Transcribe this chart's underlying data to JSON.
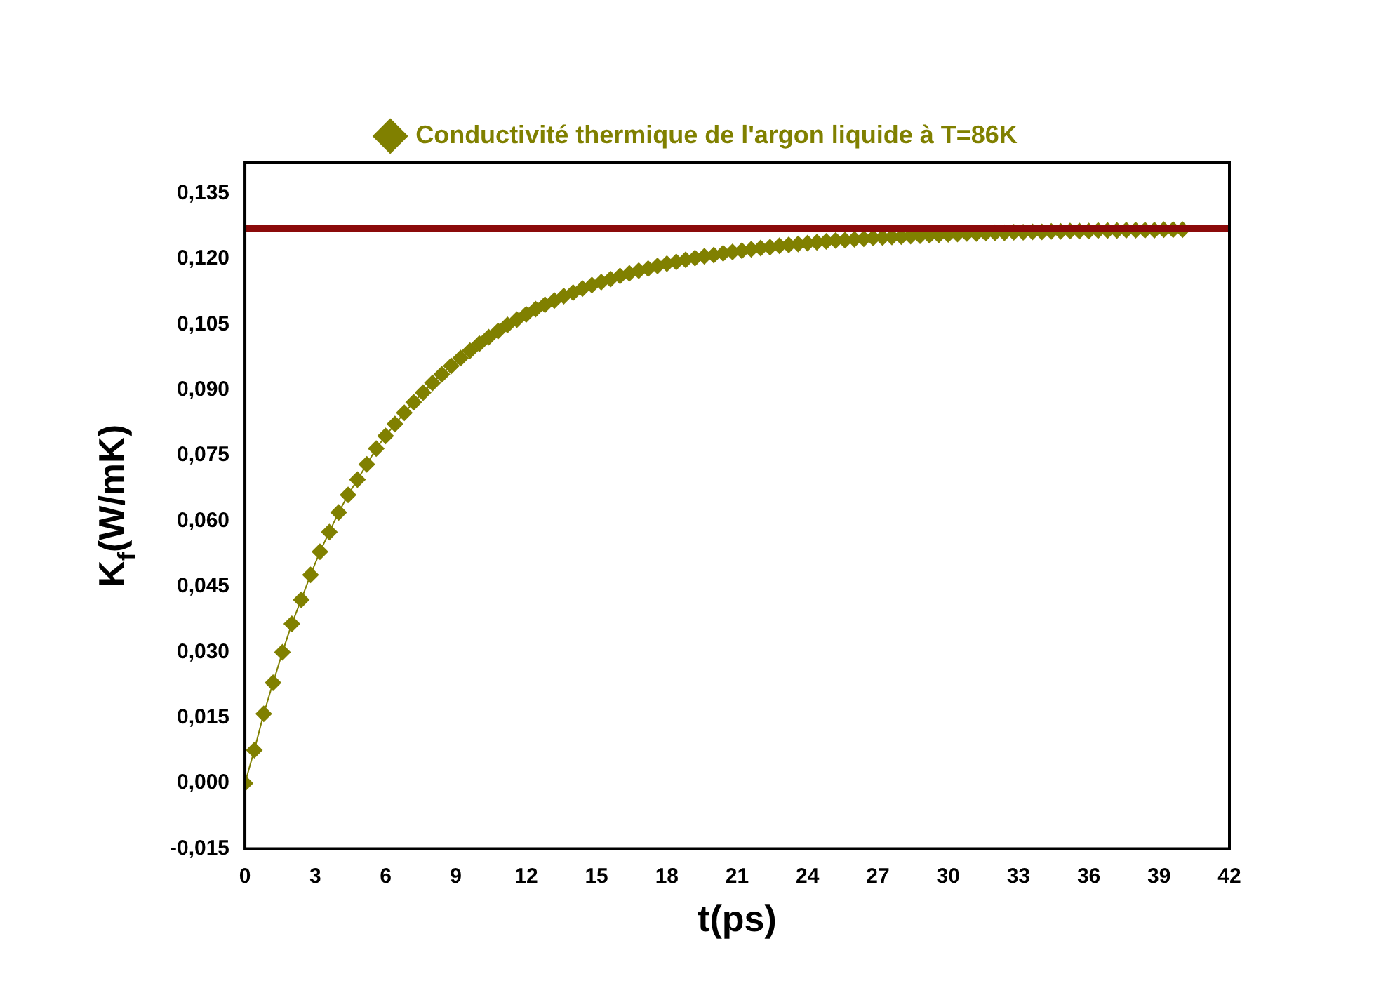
{
  "chart_data": {
    "type": "line",
    "xlabel": "t(ps)",
    "ylabel": "K$_{f}$(W/mK)",
    "xlim": [
      0,
      42
    ],
    "xticks": [
      0,
      3,
      6,
      9,
      12,
      15,
      18,
      21,
      24,
      27,
      30,
      33,
      36,
      39,
      42
    ],
    "ylim": [
      -0.015,
      0.142
    ],
    "yticks": [
      {
        "value": -0.015,
        "label": "-0,015"
      },
      {
        "value": 0,
        "label": "0,000"
      },
      {
        "value": 0.015,
        "label": "0,015"
      },
      {
        "value": 0.03,
        "label": "0,030"
      },
      {
        "value": 0.045,
        "label": "0,045"
      },
      {
        "value": 0.06,
        "label": "0,060"
      },
      {
        "value": 0.075,
        "label": "0,075"
      },
      {
        "value": 0.09,
        "label": "0,090"
      },
      {
        "value": 0.105,
        "label": "0,105"
      },
      {
        "value": 0.12,
        "label": "0,120"
      },
      {
        "value": 0.135,
        "label": "0,135"
      }
    ],
    "grid": false,
    "legend": "top",
    "marker": "diamond",
    "line_style": "solid",
    "ref_lines": [
      {
        "axis": "y",
        "value": 0.127,
        "color": "#8b0a0a"
      }
    ],
    "series": [
      {
        "name": "Conductivité thermique de l'argon liquide à T=86K",
        "color": "#808000",
        "x": [
          0,
          0.4,
          0.8,
          1.2,
          1.6,
          2,
          2.4,
          2.8,
          3.2,
          3.6,
          4,
          4.4,
          4.8,
          5.2,
          5.6,
          6,
          6.4,
          6.8,
          7.2,
          7.6,
          8,
          8.4,
          8.8,
          9.2,
          9.6,
          10,
          10.4,
          10.8,
          11.2,
          11.6,
          12,
          12.4,
          12.8,
          13.2,
          13.6,
          14,
          14.4,
          14.8,
          15.2,
          15.6,
          16,
          16.4,
          16.8,
          17.2,
          17.6,
          18,
          18.4,
          18.8,
          19.2,
          19.6,
          20,
          20.4,
          20.8,
          21.2,
          21.6,
          22,
          22.4,
          22.8,
          23.2,
          23.6,
          24,
          24.4,
          24.8,
          25.2,
          25.6,
          26,
          26.4,
          26.8,
          27.2,
          27.6,
          28,
          28.4,
          28.8,
          29.2,
          29.6,
          30,
          30.4,
          30.8,
          31.2,
          31.6,
          32,
          32.4,
          32.8,
          33.2,
          33.6,
          34,
          34.4,
          34.8,
          35.2,
          35.6,
          36,
          36.4,
          36.8,
          37.2,
          37.6,
          38,
          38.4,
          38.8,
          39.2,
          39.6,
          40
        ],
        "values": [
          0,
          0.0076,
          0.0159,
          0.023,
          0.03,
          0.0365,
          0.042,
          0.0477,
          0.053,
          0.0575,
          0.062,
          0.066,
          0.0695,
          0.073,
          0.0766,
          0.0795,
          0.0822,
          0.0848,
          0.0872,
          0.0894,
          0.0916,
          0.0936,
          0.0955,
          0.0973,
          0.099,
          0.1006,
          0.1021,
          0.1035,
          0.1049,
          0.1061,
          0.1073,
          0.1085,
          0.1095,
          0.1105,
          0.1115,
          0.1123,
          0.1132,
          0.114,
          0.1147,
          0.1154,
          0.1161,
          0.1167,
          0.1173,
          0.1178,
          0.1184,
          0.1189,
          0.1193,
          0.1198,
          0.1202,
          0.1206,
          0.1209,
          0.1213,
          0.1216,
          0.1219,
          0.1222,
          0.1225,
          0.1227,
          0.123,
          0.1232,
          0.1234,
          0.1236,
          0.1238,
          0.124,
          0.1242,
          0.1243,
          0.1245,
          0.1246,
          0.1248,
          0.1249,
          0.125,
          0.1251,
          0.1252,
          0.1253,
          0.1254,
          0.1255,
          0.1256,
          0.1257,
          0.1258,
          0.1258,
          0.1259,
          0.126,
          0.126,
          0.1261,
          0.1261,
          0.1262,
          0.1262,
          0.1263,
          0.1263,
          0.1264,
          0.1264,
          0.1264,
          0.1265,
          0.1265,
          0.1265,
          0.1266,
          0.1266,
          0.1266,
          0.1266,
          0.1267,
          0.1267,
          0.1267
        ]
      }
    ]
  }
}
